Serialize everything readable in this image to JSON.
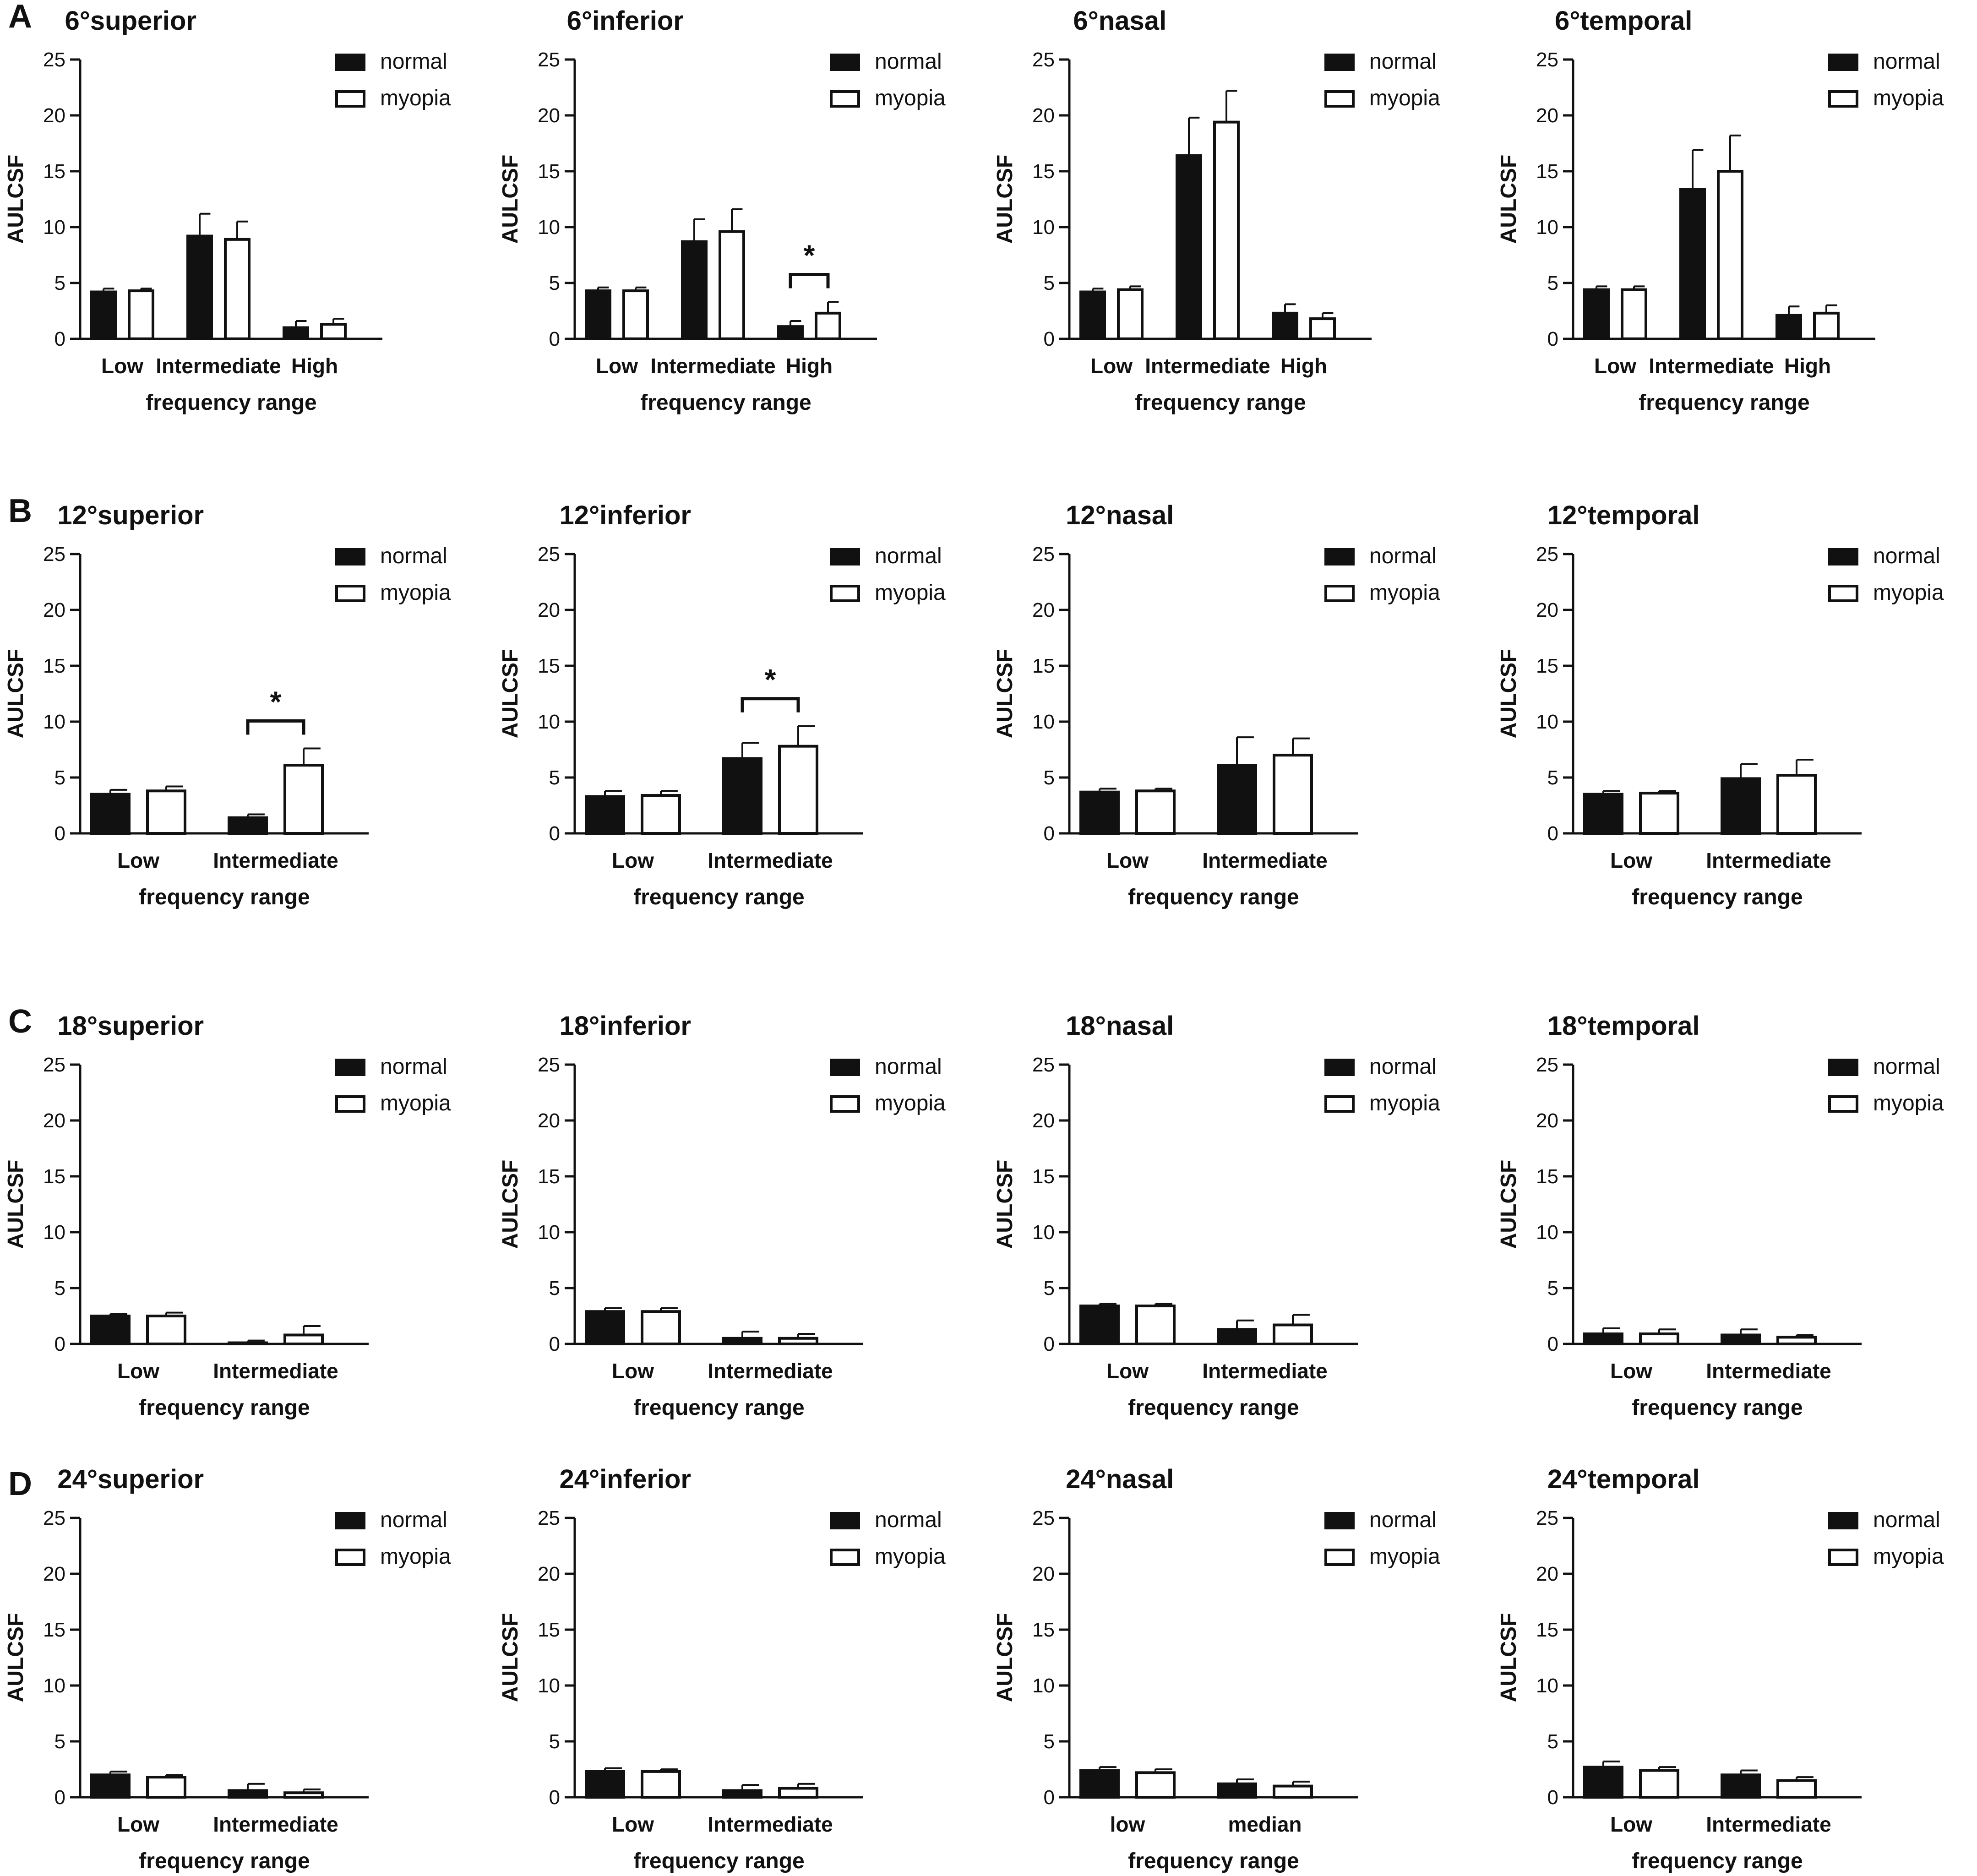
{
  "colors": {
    "normal": "#111111",
    "myopia": "#ffffff",
    "axis": "#111111"
  },
  "panel_letters": [
    "A",
    "B",
    "C",
    "D"
  ],
  "chart_data": [
    {
      "type": "bar",
      "title": "6°superior",
      "ylabel": "AULCSF",
      "xlabel": "frequency range",
      "ylim": [
        0,
        25
      ],
      "yticks": [
        0,
        5,
        10,
        15,
        20,
        25
      ],
      "categories": [
        "Low",
        "Intermediate",
        "High"
      ],
      "legend": [
        "normal",
        "myopia"
      ],
      "series": [
        {
          "name": "normal",
          "values": [
            4.2,
            9.2,
            1.0
          ],
          "errors": [
            0.3,
            2.0,
            0.6
          ]
        },
        {
          "name": "myopia",
          "values": [
            4.3,
            8.9,
            1.3
          ],
          "errors": [
            0.2,
            1.6,
            0.5
          ]
        }
      ],
      "significance": []
    },
    {
      "type": "bar",
      "title": "6°inferior",
      "ylabel": "AULCSF",
      "xlabel": "frequency range",
      "ylim": [
        0,
        25
      ],
      "yticks": [
        0,
        5,
        10,
        15,
        20,
        25
      ],
      "categories": [
        "Low",
        "Intermediate",
        "High"
      ],
      "legend": [
        "normal",
        "myopia"
      ],
      "series": [
        {
          "name": "normal",
          "values": [
            4.3,
            8.7,
            1.1
          ],
          "errors": [
            0.3,
            2.0,
            0.5
          ]
        },
        {
          "name": "myopia",
          "values": [
            4.3,
            9.6,
            2.3
          ],
          "errors": [
            0.3,
            2.0,
            1.0
          ]
        }
      ],
      "significance": [
        {
          "category": "High",
          "label": "*"
        }
      ]
    },
    {
      "type": "bar",
      "title": "6°nasal",
      "ylabel": "AULCSF",
      "xlabel": "frequency range",
      "ylim": [
        0,
        25
      ],
      "yticks": [
        0,
        5,
        10,
        15,
        20,
        25
      ],
      "categories": [
        "Low",
        "Intermediate",
        "High"
      ],
      "legend": [
        "normal",
        "myopia"
      ],
      "series": [
        {
          "name": "normal",
          "values": [
            4.2,
            16.4,
            2.3
          ],
          "errors": [
            0.3,
            3.4,
            0.8
          ]
        },
        {
          "name": "myopia",
          "values": [
            4.4,
            19.4,
            1.8
          ],
          "errors": [
            0.3,
            2.8,
            0.5
          ]
        }
      ],
      "significance": []
    },
    {
      "type": "bar",
      "title": "6°temporal",
      "ylabel": "AULCSF",
      "xlabel": "frequency range",
      "ylim": [
        0,
        25
      ],
      "yticks": [
        0,
        5,
        10,
        15,
        20,
        25
      ],
      "categories": [
        "Low",
        "Intermediate",
        "High"
      ],
      "legend": [
        "normal",
        "myopia"
      ],
      "series": [
        {
          "name": "normal",
          "values": [
            4.4,
            13.4,
            2.1
          ],
          "errors": [
            0.3,
            3.5,
            0.8
          ]
        },
        {
          "name": "myopia",
          "values": [
            4.4,
            15.0,
            2.3
          ],
          "errors": [
            0.3,
            3.2,
            0.7
          ]
        }
      ],
      "significance": []
    },
    {
      "type": "bar",
      "title": "12°superior",
      "ylabel": "AULCSF",
      "xlabel": "frequency range",
      "ylim": [
        0,
        25
      ],
      "yticks": [
        0,
        5,
        10,
        15,
        20,
        25
      ],
      "categories": [
        "Low",
        "Intermediate"
      ],
      "legend": [
        "normal",
        "myopia"
      ],
      "series": [
        {
          "name": "normal",
          "values": [
            3.5,
            1.4
          ],
          "errors": [
            0.4,
            0.3
          ]
        },
        {
          "name": "myopia",
          "values": [
            3.8,
            6.1
          ],
          "errors": [
            0.4,
            1.5
          ]
        }
      ],
      "significance": [
        {
          "category": "Intermediate",
          "label": "*"
        }
      ]
    },
    {
      "type": "bar",
      "title": "12°inferior",
      "ylabel": "AULCSF",
      "xlabel": "frequency range",
      "ylim": [
        0,
        25
      ],
      "yticks": [
        0,
        5,
        10,
        15,
        20,
        25
      ],
      "categories": [
        "Low",
        "Intermediate"
      ],
      "legend": [
        "normal",
        "myopia"
      ],
      "series": [
        {
          "name": "normal",
          "values": [
            3.3,
            6.7
          ],
          "errors": [
            0.5,
            1.4
          ]
        },
        {
          "name": "myopia",
          "values": [
            3.4,
            7.8
          ],
          "errors": [
            0.4,
            1.8
          ]
        }
      ],
      "significance": [
        {
          "category": "Intermediate",
          "label": "*"
        }
      ]
    },
    {
      "type": "bar",
      "title": "12°nasal",
      "ylabel": "AULCSF",
      "xlabel": "frequency range",
      "ylim": [
        0,
        25
      ],
      "yticks": [
        0,
        5,
        10,
        15,
        20,
        25
      ],
      "categories": [
        "Low",
        "Intermediate"
      ],
      "legend": [
        "normal",
        "myopia"
      ],
      "series": [
        {
          "name": "normal",
          "values": [
            3.7,
            6.1
          ],
          "errors": [
            0.3,
            2.5
          ]
        },
        {
          "name": "myopia",
          "values": [
            3.8,
            7.0
          ],
          "errors": [
            0.2,
            1.5
          ]
        }
      ],
      "significance": []
    },
    {
      "type": "bar",
      "title": "12°temporal",
      "ylabel": "AULCSF",
      "xlabel": "frequency range",
      "ylim": [
        0,
        25
      ],
      "yticks": [
        0,
        5,
        10,
        15,
        20,
        25
      ],
      "categories": [
        "Low",
        "Intermediate"
      ],
      "legend": [
        "normal",
        "myopia"
      ],
      "series": [
        {
          "name": "normal",
          "values": [
            3.5,
            4.9
          ],
          "errors": [
            0.3,
            1.3
          ]
        },
        {
          "name": "myopia",
          "values": [
            3.6,
            5.2
          ],
          "errors": [
            0.2,
            1.4
          ]
        }
      ],
      "significance": []
    },
    {
      "type": "bar",
      "title": "18°superior",
      "ylabel": "AULCSF",
      "xlabel": "frequency range",
      "ylim": [
        0,
        25
      ],
      "yticks": [
        0,
        5,
        10,
        15,
        20,
        25
      ],
      "categories": [
        "Low",
        "Intermediate"
      ],
      "legend": [
        "normal",
        "myopia"
      ],
      "series": [
        {
          "name": "normal",
          "values": [
            2.5,
            0.1
          ],
          "errors": [
            0.2,
            0.2
          ]
        },
        {
          "name": "myopia",
          "values": [
            2.5,
            0.8
          ],
          "errors": [
            0.3,
            0.8
          ]
        }
      ],
      "significance": []
    },
    {
      "type": "bar",
      "title": "18°inferior",
      "ylabel": "AULCSF",
      "xlabel": "frequency range",
      "ylim": [
        0,
        25
      ],
      "yticks": [
        0,
        5,
        10,
        15,
        20,
        25
      ],
      "categories": [
        "Low",
        "Intermediate"
      ],
      "legend": [
        "normal",
        "myopia"
      ],
      "series": [
        {
          "name": "normal",
          "values": [
            2.9,
            0.5
          ],
          "errors": [
            0.3,
            0.6
          ]
        },
        {
          "name": "myopia",
          "values": [
            2.9,
            0.5
          ],
          "errors": [
            0.3,
            0.4
          ]
        }
      ],
      "significance": []
    },
    {
      "type": "bar",
      "title": "18°nasal",
      "ylabel": "AULCSF",
      "xlabel": "frequency range",
      "ylim": [
        0,
        25
      ],
      "yticks": [
        0,
        5,
        10,
        15,
        20,
        25
      ],
      "categories": [
        "Low",
        "Intermediate"
      ],
      "legend": [
        "normal",
        "myopia"
      ],
      "series": [
        {
          "name": "normal",
          "values": [
            3.4,
            1.3
          ],
          "errors": [
            0.2,
            0.8
          ]
        },
        {
          "name": "myopia",
          "values": [
            3.4,
            1.7
          ],
          "errors": [
            0.2,
            0.9
          ]
        }
      ],
      "significance": []
    },
    {
      "type": "bar",
      "title": "18°temporal",
      "ylabel": "AULCSF",
      "xlabel": "frequency range",
      "ylim": [
        0,
        25
      ],
      "yticks": [
        0,
        5,
        10,
        15,
        20,
        25
      ],
      "categories": [
        "Low",
        "Intermediate"
      ],
      "legend": [
        "normal",
        "myopia"
      ],
      "series": [
        {
          "name": "normal",
          "values": [
            0.9,
            0.8
          ],
          "errors": [
            0.5,
            0.5
          ]
        },
        {
          "name": "myopia",
          "values": [
            0.9,
            0.6
          ],
          "errors": [
            0.4,
            0.2
          ]
        }
      ],
      "significance": []
    },
    {
      "type": "bar",
      "title": "24°superior",
      "ylabel": "AULCSF",
      "xlabel": "frequency range",
      "ylim": [
        0,
        25
      ],
      "yticks": [
        0,
        5,
        10,
        15,
        20,
        25
      ],
      "categories": [
        "Low",
        "Intermediate"
      ],
      "legend": [
        "normal",
        "myopia"
      ],
      "series": [
        {
          "name": "normal",
          "values": [
            2.0,
            0.6
          ],
          "errors": [
            0.3,
            0.6
          ]
        },
        {
          "name": "myopia",
          "values": [
            1.8,
            0.4
          ],
          "errors": [
            0.2,
            0.3
          ]
        }
      ],
      "significance": []
    },
    {
      "type": "bar",
      "title": "24°inferior",
      "ylabel": "AULCSF",
      "xlabel": "frequency range",
      "ylim": [
        0,
        25
      ],
      "yticks": [
        0,
        5,
        10,
        15,
        20,
        25
      ],
      "categories": [
        "Low",
        "Intermediate"
      ],
      "legend": [
        "normal",
        "myopia"
      ],
      "series": [
        {
          "name": "normal",
          "values": [
            2.3,
            0.6
          ],
          "errors": [
            0.3,
            0.5
          ]
        },
        {
          "name": "myopia",
          "values": [
            2.3,
            0.8
          ],
          "errors": [
            0.2,
            0.4
          ]
        }
      ],
      "significance": []
    },
    {
      "type": "bar",
      "title": "24°nasal",
      "ylabel": "AULCSF",
      "xlabel": "frequency range",
      "ylim": [
        0,
        25
      ],
      "yticks": [
        0,
        5,
        10,
        15,
        20,
        25
      ],
      "categories": [
        "low",
        "median"
      ],
      "legend": [
        "normal",
        "myopia"
      ],
      "series": [
        {
          "name": "normal",
          "values": [
            2.4,
            1.2
          ],
          "errors": [
            0.3,
            0.4
          ]
        },
        {
          "name": "myopia",
          "values": [
            2.2,
            1.0
          ],
          "errors": [
            0.3,
            0.4
          ]
        }
      ],
      "significance": []
    },
    {
      "type": "bar",
      "title": "24°temporal",
      "ylabel": "AULCSF",
      "xlabel": "frequency range",
      "ylim": [
        0,
        25
      ],
      "yticks": [
        0,
        5,
        10,
        15,
        20,
        25
      ],
      "categories": [
        "Low",
        "Intermediate"
      ],
      "legend": [
        "normal",
        "myopia"
      ],
      "series": [
        {
          "name": "normal",
          "values": [
            2.7,
            2.0
          ],
          "errors": [
            0.5,
            0.4
          ]
        },
        {
          "name": "myopia",
          "values": [
            2.4,
            1.5
          ],
          "errors": [
            0.3,
            0.3
          ]
        }
      ],
      "significance": []
    }
  ]
}
